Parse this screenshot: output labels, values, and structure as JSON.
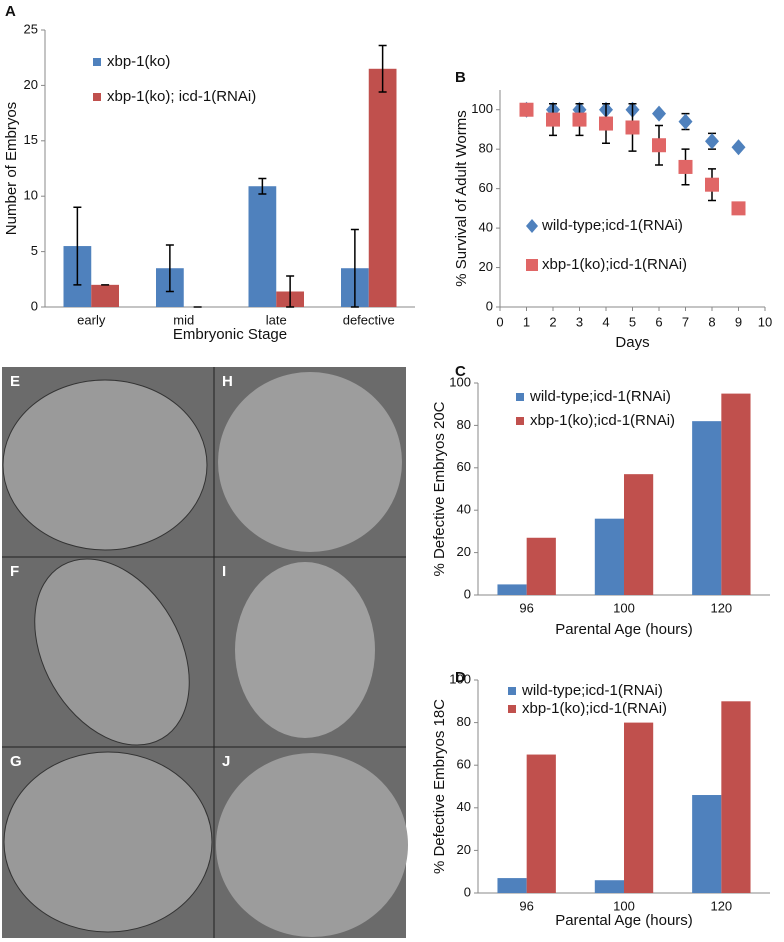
{
  "chart_data": [
    {
      "type": "bar",
      "panel": "A",
      "ylabel": "Number of Embryos",
      "xlabel": "Embryonic Stage",
      "categories": [
        "early",
        "mid",
        "late",
        "defective"
      ],
      "series": [
        {
          "name": "xbp-1(ko)",
          "color": "#4f81bd",
          "values": [
            5.5,
            3.5,
            10.9,
            3.5
          ],
          "errors": [
            3.5,
            2.1,
            0.7,
            3.5
          ]
        },
        {
          "name": "xbp-1(ko); icd-1(RNAi)",
          "color": "#c0504d",
          "values": [
            2,
            0,
            1.4,
            21.5
          ],
          "errors": [
            0,
            0,
            1.4,
            2.1
          ]
        }
      ],
      "ylim": [
        0,
        25
      ],
      "yticks": [
        0,
        5,
        10,
        15,
        20,
        25
      ]
    },
    {
      "type": "scatter",
      "panel": "B",
      "ylabel": "% Survival of Adult Worms",
      "xlabel": "Days",
      "x": [
        1,
        2,
        3,
        4,
        5,
        6,
        7,
        8,
        9
      ],
      "series": [
        {
          "name": "wild-type;icd-1(RNAi)",
          "color": "#4f81bd",
          "marker": "diamond",
          "values": [
            100,
            100,
            100,
            100,
            100,
            98,
            94,
            84,
            81
          ],
          "errors": [
            0,
            0,
            0,
            0,
            0,
            0,
            4,
            4,
            0
          ]
        },
        {
          "name": "xbp-1(ko);icd-1(RNAi)",
          "color": "#e06666",
          "marker": "square",
          "values": [
            100,
            95,
            95,
            93,
            91,
            82,
            71,
            62,
            50
          ],
          "errors": [
            0,
            8,
            8,
            10,
            12,
            10,
            9,
            8,
            0
          ]
        }
      ],
      "xlim": [
        0,
        10
      ],
      "xticks": [
        0,
        1,
        2,
        3,
        4,
        5,
        6,
        7,
        8,
        9,
        10
      ],
      "ylim": [
        0,
        110
      ],
      "yticks": [
        0,
        20,
        40,
        60,
        80,
        100
      ]
    },
    {
      "type": "bar",
      "panel": "C",
      "ylabel": "% Defective Embryos 20C",
      "xlabel": "Parental Age (hours)",
      "categories": [
        "96",
        "100",
        "120"
      ],
      "series": [
        {
          "name": "wild-type;icd-1(RNAi)",
          "color": "#4f81bd",
          "values": [
            5,
            36,
            82
          ]
        },
        {
          "name": "xbp-1(ko);icd-1(RNAi)",
          "color": "#c0504d",
          "values": [
            27,
            57,
            95
          ]
        }
      ],
      "ylim": [
        0,
        100
      ],
      "yticks": [
        0,
        20,
        40,
        60,
        80,
        100
      ]
    },
    {
      "type": "bar",
      "panel": "D",
      "ylabel": "% Defective Embryos 18C",
      "xlabel": "Parental Age (hours)",
      "categories": [
        "96",
        "100",
        "120"
      ],
      "series": [
        {
          "name": "wild-type;icd-1(RNAi)",
          "color": "#4f81bd",
          "values": [
            7,
            6,
            46
          ]
        },
        {
          "name": "xbp-1(ko);icd-1(RNAi)",
          "color": "#c0504d",
          "values": [
            65,
            80,
            90
          ]
        }
      ],
      "ylim": [
        0,
        100
      ],
      "yticks": [
        0,
        20,
        40,
        60,
        80,
        100
      ]
    }
  ],
  "micrographs": [
    "E",
    "H",
    "F",
    "I",
    "G",
    "J"
  ]
}
